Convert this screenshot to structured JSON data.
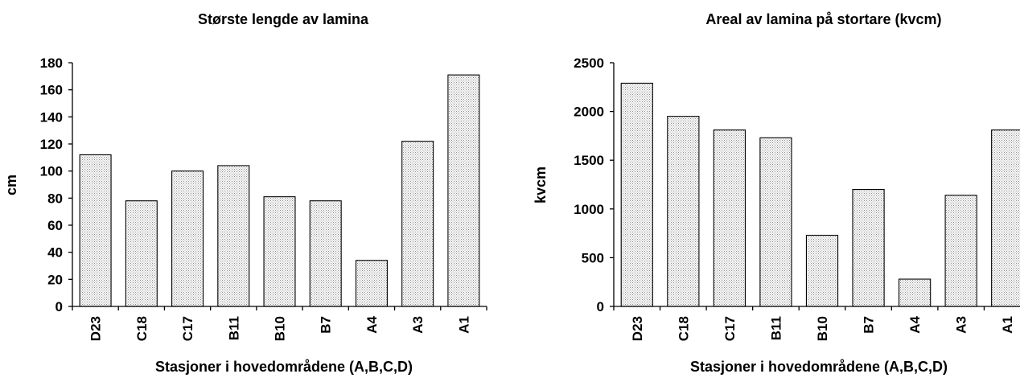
{
  "chart_data": [
    {
      "type": "bar",
      "title": "Største lengde av lamina",
      "xlabel": "Stasjoner i hovedområdene (A,B,C,D)",
      "ylabel": "cm",
      "ylim": [
        0,
        180
      ],
      "yticks": [
        0,
        20,
        40,
        60,
        80,
        100,
        120,
        140,
        160,
        180
      ],
      "categories": [
        "D23",
        "C18",
        "C17",
        "B11",
        "B10",
        "B7",
        "A4",
        "A3",
        "A1"
      ],
      "values": [
        112,
        78,
        100,
        104,
        81,
        78,
        34,
        122,
        171
      ],
      "grid": false,
      "legend": "none"
    },
    {
      "type": "bar",
      "title": "Areal av lamina på stortare (kvcm)",
      "xlabel": "Stasjoner i hovedområdene (A,B,C,D)",
      "ylabel": "kvcm",
      "ylim": [
        0,
        2500
      ],
      "yticks": [
        0,
        500,
        1000,
        1500,
        2000,
        2500
      ],
      "categories": [
        "D23",
        "C18",
        "C17",
        "B11",
        "B10",
        "B7",
        "A4",
        "A3",
        "A1"
      ],
      "values": [
        2290,
        1950,
        1810,
        1730,
        730,
        1200,
        280,
        1140,
        1810
      ],
      "grid": false,
      "legend": "none"
    }
  ]
}
